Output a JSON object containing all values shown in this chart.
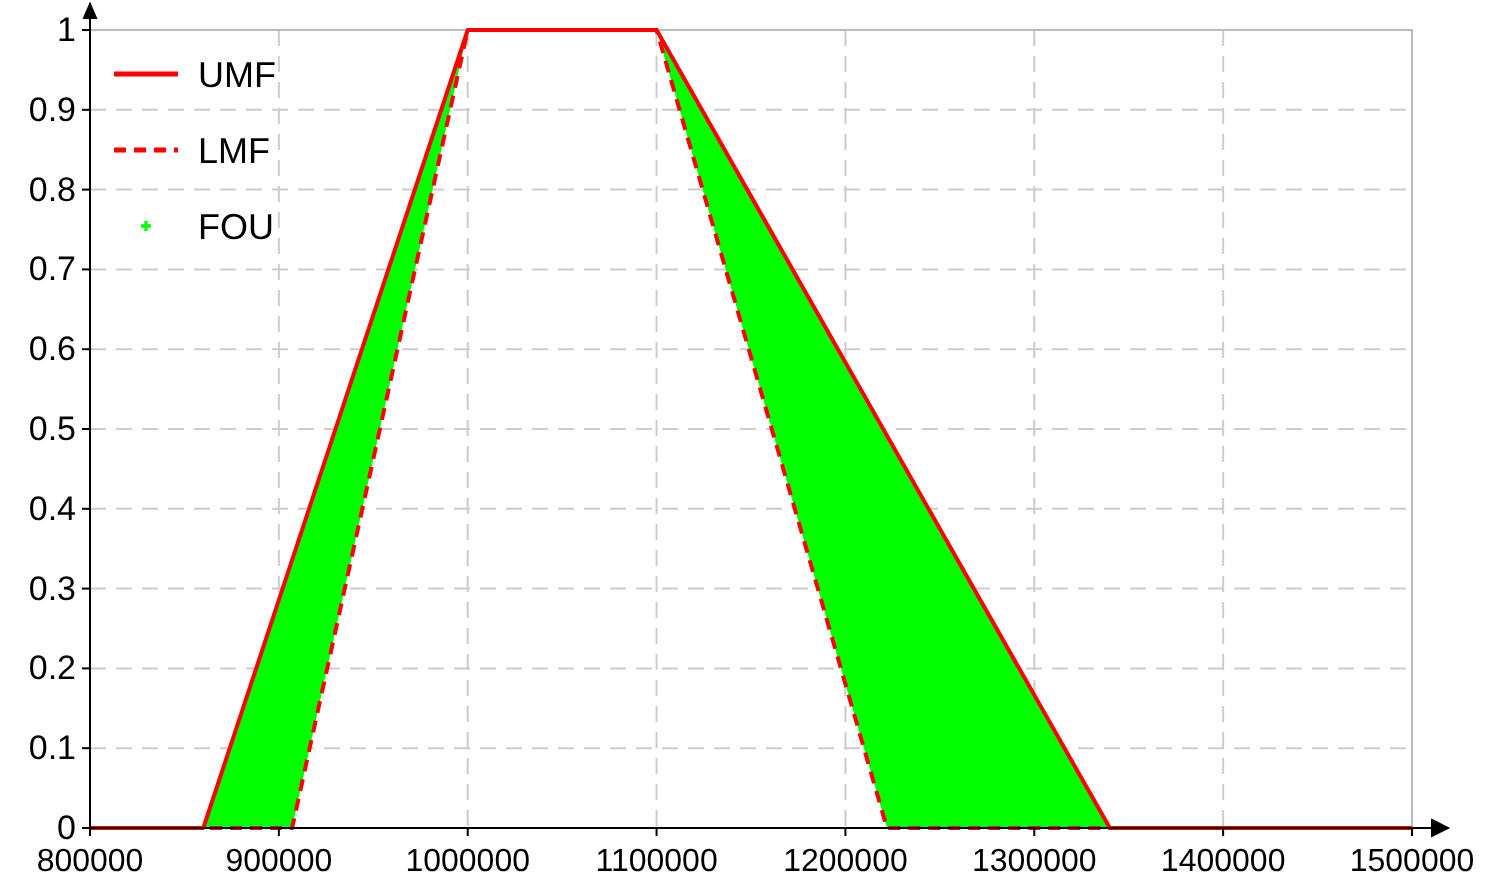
{
  "chart_data": {
    "type": "line",
    "xlim": [
      800000,
      1500000
    ],
    "ylim": [
      0,
      1
    ],
    "xticks": [
      800000,
      900000,
      1000000,
      1100000,
      1200000,
      1300000,
      1400000,
      1500000
    ],
    "yticks": [
      0,
      0.1,
      0.2,
      0.3,
      0.4,
      0.5,
      0.6,
      0.7,
      0.8,
      0.9,
      1
    ],
    "grid": true,
    "legend": "top left",
    "series": [
      {
        "name": "UMF",
        "color": "#ff0000",
        "line_style": "solid",
        "x": [
          800000,
          860000,
          1000000,
          1100000,
          1340000,
          1500000
        ],
        "values": [
          0,
          0,
          1,
          1,
          0,
          0
        ]
      },
      {
        "name": "LMF",
        "color": "#ff0000",
        "line_style": "dashed",
        "x": [
          800000,
          907000,
          1000000,
          1100000,
          1222000,
          1500000
        ],
        "values": [
          0,
          0,
          1,
          1,
          0,
          0
        ]
      },
      {
        "name": "FOU",
        "type": "area",
        "color": "#00ff00",
        "x": [
          860000,
          907000,
          1000000,
          1100000,
          1222000,
          1340000
        ],
        "values": [
          null,
          null,
          null,
          null,
          null,
          null
        ],
        "lower": [
          0,
          0,
          1,
          1,
          0,
          0
        ],
        "upper": [
          0,
          0.34,
          1,
          1,
          0.49,
          0
        ]
      }
    ]
  }
}
